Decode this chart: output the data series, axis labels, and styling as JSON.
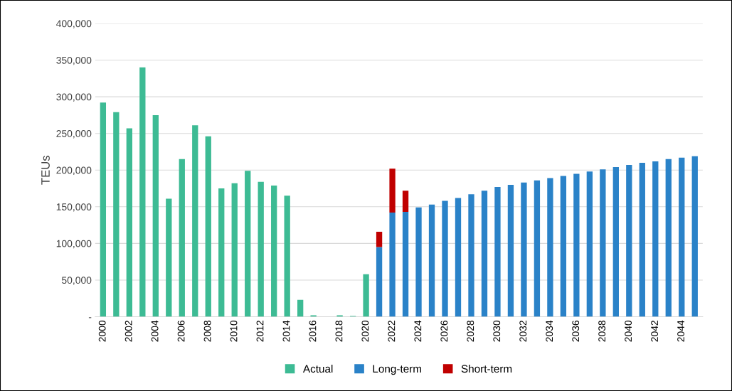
{
  "chart_data": {
    "type": "bar",
    "stacked": true,
    "ylabel": "TEUs",
    "categories": [
      "2000",
      null,
      "2002",
      null,
      "2004",
      null,
      "2006",
      null,
      "2008",
      null,
      "2010",
      null,
      "2012",
      null,
      "2014",
      null,
      "2016",
      null,
      "2018",
      null,
      "2020",
      null,
      "2022",
      null,
      "2024",
      null,
      "2026",
      null,
      "2028",
      null,
      "2030",
      null,
      "2032",
      null,
      "2034",
      null,
      "2036",
      null,
      "2038",
      null,
      "2040",
      null,
      "2042",
      null,
      "2044",
      null
    ],
    "series": [
      {
        "name": "Actual",
        "color": "#3dbb94",
        "values": [
          292000,
          279000,
          257000,
          340000,
          275000,
          161000,
          215000,
          261000,
          246000,
          175000,
          182000,
          199000,
          184000,
          179000,
          165000,
          23000,
          2000,
          0,
          2000,
          1000,
          58000,
          null,
          null,
          null,
          null,
          null,
          null,
          null,
          null,
          null,
          null,
          null,
          null,
          null,
          null,
          null,
          null,
          null,
          null,
          null,
          null,
          null,
          null,
          null,
          null,
          null
        ]
      },
      {
        "name": "Long-term",
        "color": "#2a82c8",
        "values": [
          null,
          null,
          null,
          null,
          null,
          null,
          null,
          null,
          null,
          null,
          null,
          null,
          null,
          null,
          null,
          null,
          null,
          null,
          null,
          null,
          null,
          95000,
          142000,
          143000,
          149000,
          153000,
          158000,
          162000,
          167000,
          172000,
          177000,
          180000,
          183000,
          186000,
          189000,
          192000,
          195000,
          198000,
          201000,
          204000,
          207000,
          210000,
          212000,
          215000,
          217000,
          219000
        ]
      },
      {
        "name": "Short-term",
        "color": "#c00000",
        "values": [
          null,
          null,
          null,
          null,
          null,
          null,
          null,
          null,
          null,
          null,
          null,
          null,
          null,
          null,
          null,
          null,
          null,
          null,
          null,
          null,
          null,
          21000,
          60000,
          29000,
          null,
          null,
          null,
          null,
          null,
          null,
          null,
          null,
          null,
          null,
          null,
          null,
          null,
          null,
          null,
          null,
          null,
          null,
          null,
          null,
          null,
          null
        ]
      }
    ],
    "ylim": [
      0,
      400000
    ],
    "yticks": [
      {
        "value": 0,
        "label": "-"
      },
      {
        "value": 50000,
        "label": "50,000"
      },
      {
        "value": 100000,
        "label": "100,000"
      },
      {
        "value": 150000,
        "label": "150,000"
      },
      {
        "value": 200000,
        "label": "200,000"
      },
      {
        "value": 250000,
        "label": "250,000"
      },
      {
        "value": 300000,
        "label": "300,000"
      },
      {
        "value": 350000,
        "label": "350,000"
      },
      {
        "value": 400000,
        "label": "400,000"
      }
    ],
    "grid": "y",
    "legend": "bottom"
  }
}
